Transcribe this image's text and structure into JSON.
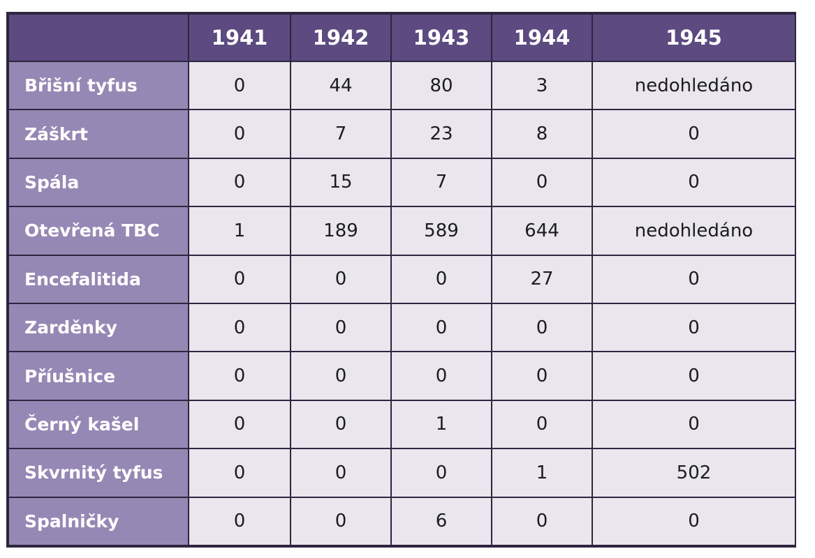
{
  "table": {
    "corner": "",
    "columns": [
      "1941",
      "1942",
      "1943",
      "1944",
      "1945"
    ],
    "rows": [
      {
        "label": "Břišní tyfus",
        "values": [
          "0",
          "44",
          "80",
          "3",
          "nedohledáno"
        ]
      },
      {
        "label": "Záškrt",
        "values": [
          "0",
          "7",
          "23",
          "8",
          "0"
        ]
      },
      {
        "label": "Spála",
        "values": [
          "0",
          "15",
          "7",
          "0",
          "0"
        ]
      },
      {
        "label": "Otevřená TBC",
        "values": [
          "1",
          "189",
          "589",
          "644",
          "nedohledáno"
        ]
      },
      {
        "label": "Encefalitida",
        "values": [
          "0",
          "0",
          "0",
          "27",
          "0"
        ]
      },
      {
        "label": "Zarděnky",
        "values": [
          "0",
          "0",
          "0",
          "0",
          "0"
        ]
      },
      {
        "label": "Příušnice",
        "values": [
          "0",
          "0",
          "0",
          "0",
          "0"
        ]
      },
      {
        "label": "Černý kašel",
        "values": [
          "0",
          "0",
          "1",
          "0",
          "0"
        ]
      },
      {
        "label": "Skvrnitý tyfus",
        "values": [
          "0",
          "0",
          "0",
          "1",
          "502"
        ]
      },
      {
        "label": "Spalničky",
        "values": [
          "0",
          "0",
          "6",
          "0",
          "0"
        ]
      }
    ],
    "colors": {
      "header_bg": "#5c4a80",
      "row_label_bg": "#9688b4",
      "cell_bg": "#e9e6ed",
      "border": "#2e2540"
    }
  }
}
